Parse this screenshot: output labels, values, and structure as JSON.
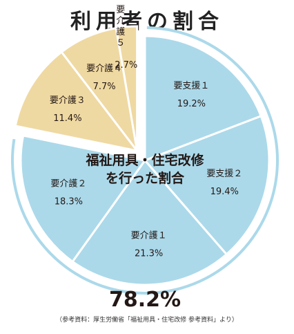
{
  "title": "利用者の割合",
  "source_note": "（参考資料：厚生労働省「福祉用具・住宅改修 参考資料」より）",
  "colors": {
    "blue_slice": "#abd9ea",
    "beige_slice": "#efd9a2",
    "ring": "#abd9ea",
    "text": "#231815"
  },
  "chart_data": {
    "type": "pie",
    "title": "利用者の割合",
    "slices": [
      {
        "label": "要支援１",
        "value": 19.2,
        "value_label": "19.2%",
        "group": "blue"
      },
      {
        "label": "要支援２",
        "value": 19.4,
        "value_label": "19.4%",
        "group": "blue"
      },
      {
        "label": "要介護１",
        "value": 21.3,
        "value_label": "21.3%",
        "group": "blue"
      },
      {
        "label": "要介護２",
        "value": 18.3,
        "value_label": "18.3%",
        "group": "blue"
      },
      {
        "label": "要介護３",
        "value": 11.4,
        "value_label": "11.4%",
        "group": "beige"
      },
      {
        "label": "要介護４",
        "value": 7.7,
        "value_label": "7.7%",
        "group": "beige"
      },
      {
        "label": "要介護５",
        "value": 2.7,
        "value_label": "2.7%",
        "group": "beige"
      }
    ],
    "group_annotation": {
      "lines": [
        "福祉用具・住宅改修",
        "を行った割合"
      ],
      "total_label": "78.2%"
    }
  }
}
